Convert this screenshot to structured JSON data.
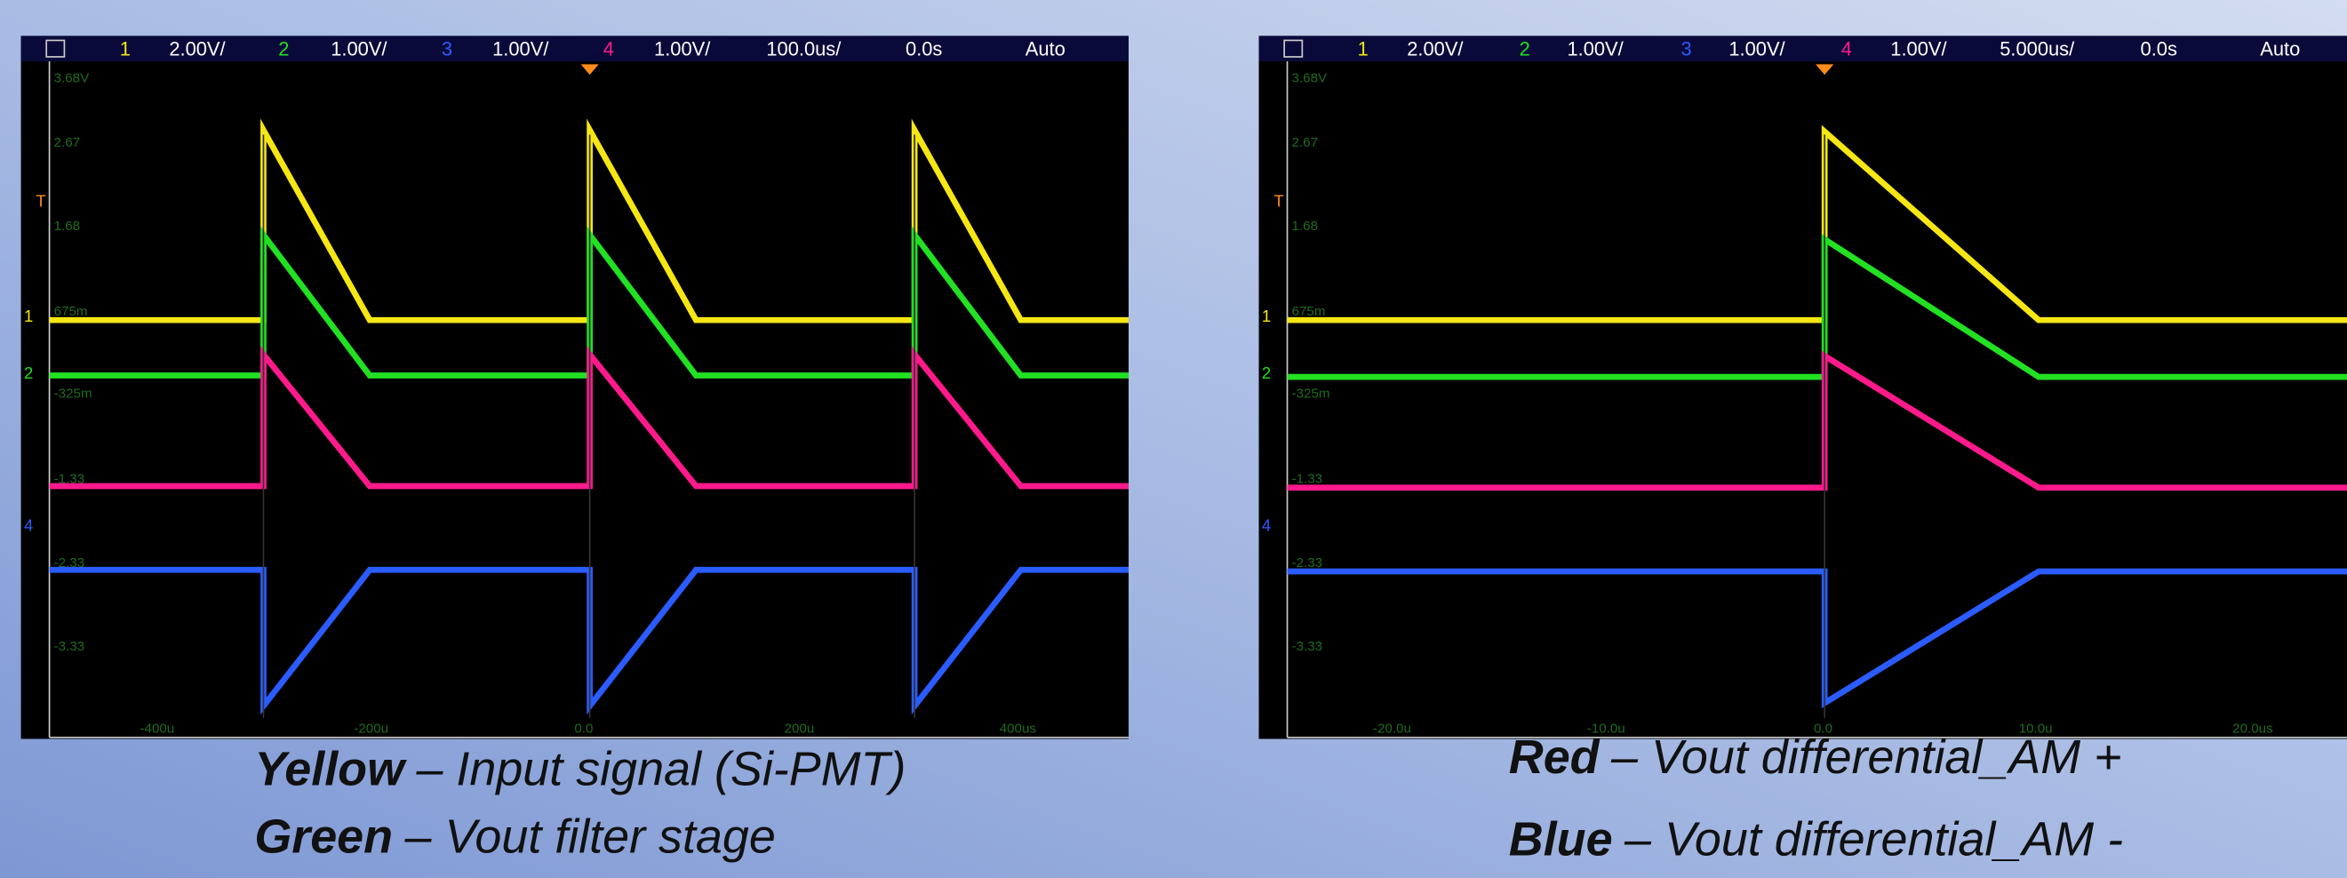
{
  "scopes": [
    {
      "channels": [
        {
          "number": "1",
          "scale": "2.00V/"
        },
        {
          "number": "2",
          "scale": "1.00V/"
        },
        {
          "number": "3",
          "scale": "1.00V/"
        },
        {
          "number": "4",
          "scale": "1.00V/"
        }
      ],
      "timebase": "100.0us/",
      "delay": "0.0s",
      "mode": "Auto",
      "y_labels": [
        "3.68V",
        "2.67",
        "1.68",
        "675m",
        "-325m",
        "-1.33",
        "-2.33",
        "-3.33"
      ],
      "x_labels": [
        "-400u",
        "-200u",
        "0.0",
        "200u",
        "400us"
      ],
      "markers": [
        "T",
        "1",
        "2",
        "4"
      ]
    },
    {
      "channels": [
        {
          "number": "1",
          "scale": "2.00V/"
        },
        {
          "number": "2",
          "scale": "1.00V/"
        },
        {
          "number": "3",
          "scale": "1.00V/"
        },
        {
          "number": "4",
          "scale": "1.00V/"
        }
      ],
      "timebase": "5.000us/",
      "delay": "0.0s",
      "mode": "Auto",
      "y_labels": [
        "3.68V",
        "2.67",
        "1.68",
        "675m",
        "-325m",
        "-1.33",
        "-2.33",
        "-3.33"
      ],
      "x_labels": [
        "-20.0u",
        "-10.0u",
        "0.0",
        "10.0u",
        "20.0us"
      ],
      "markers": [
        "T",
        "1",
        "2",
        "4"
      ]
    }
  ],
  "captions": [
    {
      "label": "Yellow",
      "text": "– Input signal (Si-PMT)"
    },
    {
      "label": "Green",
      "text": "– Vout filter stage"
    },
    {
      "label": "Red",
      "text": "– Vout differential_AM +"
    },
    {
      "label": "Blue",
      "text": "– Vout differential_AM -"
    }
  ]
}
